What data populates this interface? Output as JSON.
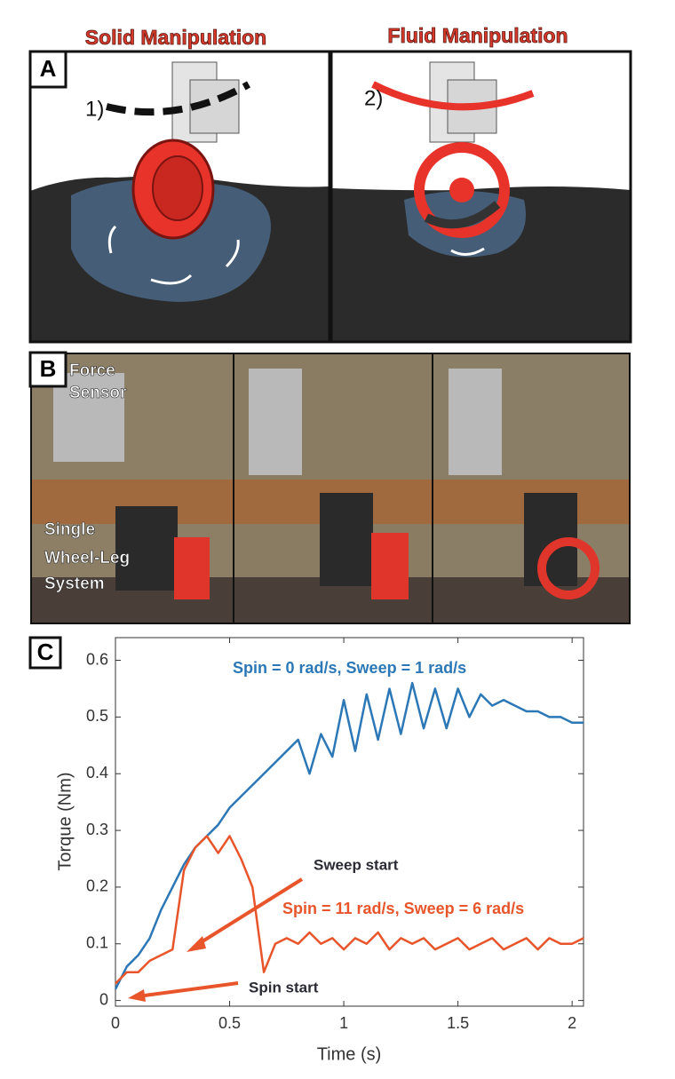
{
  "panel_a": {
    "label": "A",
    "left_title": "Solid Manipulation",
    "right_title": "Fluid Manipulation",
    "left_step": "1)",
    "right_step": "2)"
  },
  "panel_b": {
    "label": "B",
    "sensor_label": [
      "Force",
      "Sensor"
    ],
    "system_label": [
      "Single",
      "Wheel-Leg",
      "System"
    ]
  },
  "chart_data": {
    "type": "line",
    "panel_label": "C",
    "x_label": "Time (s)",
    "y_label": "Torque (Nm)",
    "x": [
      0,
      0.05,
      0.1,
      0.15,
      0.2,
      0.25,
      0.3,
      0.35,
      0.4,
      0.45,
      0.5,
      0.55,
      0.6,
      0.65,
      0.7,
      0.75,
      0.8,
      0.85,
      0.9,
      0.95,
      1.0,
      1.05,
      1.1,
      1.15,
      1.2,
      1.25,
      1.3,
      1.35,
      1.4,
      1.45,
      1.5,
      1.55,
      1.6,
      1.65,
      1.7,
      1.75,
      1.8,
      1.85,
      1.9,
      1.95,
      2.0,
      2.05
    ],
    "series": [
      {
        "name": "Spin = 0 rad/s, Sweep = 1 rad/s",
        "color": "#2c78b7",
        "values": [
          0.02,
          0.06,
          0.08,
          0.11,
          0.16,
          0.2,
          0.24,
          0.27,
          0.29,
          0.31,
          0.34,
          0.36,
          0.38,
          0.4,
          0.42,
          0.44,
          0.46,
          0.4,
          0.47,
          0.43,
          0.53,
          0.44,
          0.54,
          0.46,
          0.55,
          0.47,
          0.56,
          0.48,
          0.55,
          0.48,
          0.55,
          0.5,
          0.54,
          0.52,
          0.53,
          0.52,
          0.51,
          0.51,
          0.5,
          0.5,
          0.49,
          0.49
        ]
      },
      {
        "name": "Spin = 11 rad/s, Sweep = 6 rad/s",
        "color": "#e8552b",
        "values": [
          0.03,
          0.05,
          0.05,
          0.07,
          0.08,
          0.09,
          0.23,
          0.27,
          0.29,
          0.26,
          0.29,
          0.25,
          0.2,
          0.05,
          0.1,
          0.11,
          0.1,
          0.12,
          0.1,
          0.11,
          0.09,
          0.11,
          0.1,
          0.12,
          0.09,
          0.11,
          0.1,
          0.11,
          0.09,
          0.1,
          0.11,
          0.09,
          0.1,
          0.11,
          0.09,
          0.1,
          0.11,
          0.09,
          0.11,
          0.1,
          0.1,
          0.11
        ]
      }
    ],
    "annotations": [
      "Sweep start",
      "Spin start"
    ],
    "xlim": [
      0,
      2.05
    ],
    "ylim": [
      -0.01,
      0.64
    ],
    "xticks": [
      0,
      0.5,
      1,
      1.5,
      2
    ],
    "yticks": [
      0,
      0.1,
      0.2,
      0.3,
      0.4,
      0.5,
      0.6
    ]
  }
}
